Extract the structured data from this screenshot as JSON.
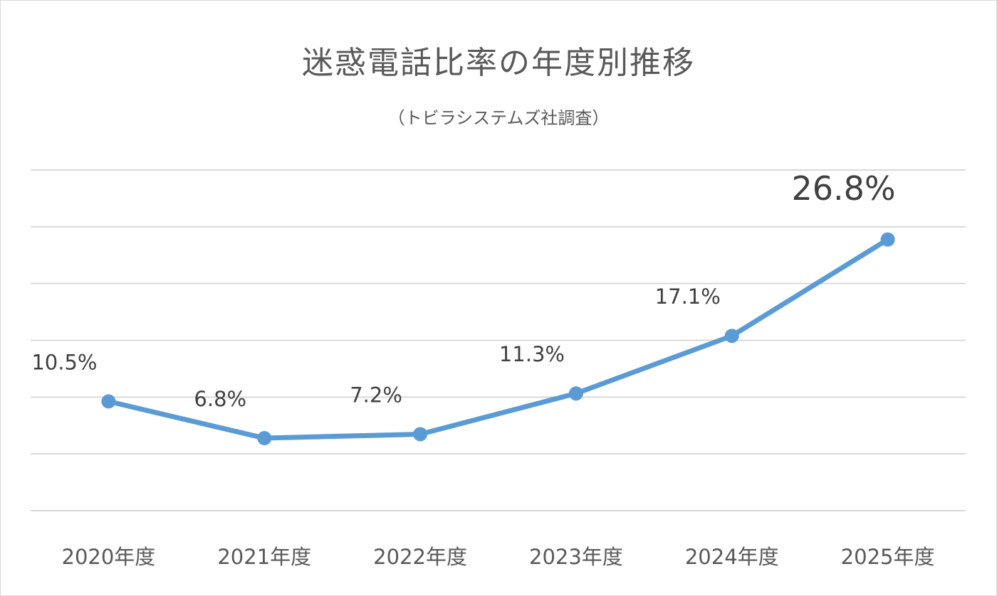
{
  "chart_data": {
    "type": "line",
    "title": "迷惑電話比率の年度別推移",
    "subtitle": "（トビラシステムズ社調査）",
    "categories": [
      "2020年度",
      "2021年度",
      "2022年度",
      "2023年度",
      "2024年度",
      "2025年度"
    ],
    "series": [
      {
        "values": [
          10.5,
          6.8,
          7.2,
          11.3,
          17.1,
          26.8
        ],
        "labels": [
          "10.5%",
          "6.8%",
          "7.2%",
          "11.3%",
          "17.1%",
          "26.8%"
        ],
        "color": "#5b9bd5"
      }
    ],
    "highlight_index": 5,
    "ylim": [
      -0.5,
      33.8
    ],
    "gridlines": 7,
    "grid": true,
    "legend": "none",
    "colors": {
      "line": "#5b9bd5",
      "grid": "#d9d9d9",
      "text": "#595959"
    }
  }
}
